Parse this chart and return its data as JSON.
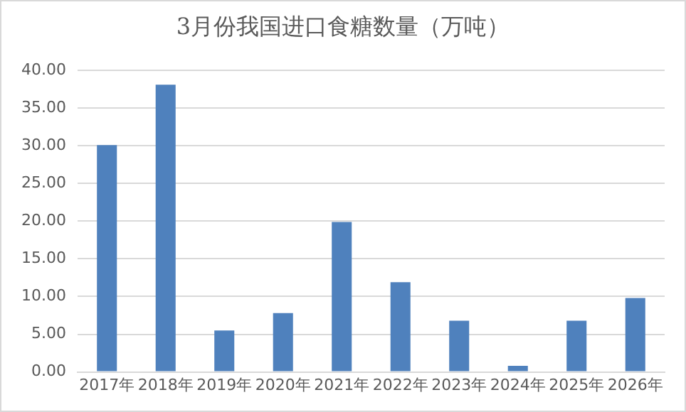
{
  "chart_data": {
    "type": "bar",
    "title": "3月份我国进口食糖数量（万吨）",
    "categories": [
      "2017年",
      "2018年",
      "2019年",
      "2020年",
      "2021年",
      "2022年",
      "2023年",
      "2024年",
      "2025年",
      "2026年"
    ],
    "values": [
      30.1,
      38.1,
      5.5,
      7.8,
      19.9,
      11.9,
      6.8,
      0.8,
      6.8,
      9.8
    ],
    "color": "#4f81bd",
    "ylim": [
      0,
      40
    ],
    "yticks": [
      {
        "value": 0,
        "label": "0.00"
      },
      {
        "value": 5,
        "label": "5.00"
      },
      {
        "value": 10,
        "label": "10.00"
      },
      {
        "value": 15,
        "label": "15.00"
      },
      {
        "value": 20,
        "label": "20.00"
      },
      {
        "value": 25,
        "label": "25.00"
      },
      {
        "value": 30,
        "label": "30.00"
      },
      {
        "value": 35,
        "label": "35.00"
      },
      {
        "value": 40,
        "label": "40.00"
      }
    ],
    "grid": "y"
  }
}
